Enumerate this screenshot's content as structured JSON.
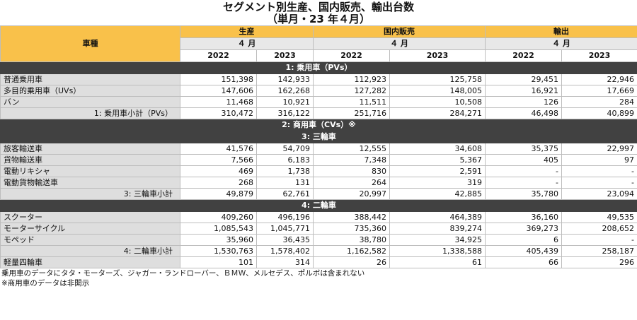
{
  "title_line1": "セグメント別生産、国内販売、輸出台数",
  "title_line2": "（単月・23 年４月）",
  "header": {
    "kind": "車種",
    "groups": [
      "生産",
      "国内販売",
      "輸出"
    ],
    "month": "４ 月",
    "years": [
      "2022",
      "2023",
      "2022",
      "2023",
      "2022",
      "2023"
    ]
  },
  "sections": {
    "pv": "1: 乗用車（PVs）",
    "cv": "2: 商用車（CVs）※",
    "three": "3: 三輪車",
    "two": "4: 二輪車"
  },
  "rows": {
    "pv1": {
      "label": "普通乗用車",
      "v": [
        "151,398",
        "142,933",
        "112,923",
        "125,758",
        "29,451",
        "22,946"
      ]
    },
    "pv2": {
      "label": "多目的乗用車（UVs）",
      "v": [
        "147,606",
        "162,268",
        "127,282",
        "148,005",
        "16,921",
        "17,669"
      ]
    },
    "pv3": {
      "label": "バン",
      "v": [
        "11,468",
        "10,921",
        "11,511",
        "10,508",
        "126",
        "284"
      ]
    },
    "pvs": {
      "label": "1: 乗用車小計（PVs）",
      "v": [
        "310,472",
        "316,122",
        "251,716",
        "284,271",
        "46,498",
        "40,899"
      ]
    },
    "t1": {
      "label": "旅客輸送車",
      "v": [
        "41,576",
        "54,709",
        "12,555",
        "34,608",
        "35,375",
        "22,997"
      ]
    },
    "t2": {
      "label": "貨物輸送車",
      "v": [
        "7,566",
        "6,183",
        "7,348",
        "5,367",
        "405",
        "97"
      ]
    },
    "t3": {
      "label": "電動リキシャ",
      "v": [
        "469",
        "1,738",
        "830",
        "2,591",
        "-",
        "-"
      ]
    },
    "t4": {
      "label": "電動貨物輸送車",
      "v": [
        "268",
        "131",
        "264",
        "319",
        "-",
        "-"
      ]
    },
    "ts": {
      "label": "3: 三輪車小計",
      "v": [
        "49,879",
        "62,761",
        "20,997",
        "42,885",
        "35,780",
        "23,094"
      ]
    },
    "w1": {
      "label": "スクーター",
      "v": [
        "409,260",
        "496,196",
        "388,442",
        "464,389",
        "36,160",
        "49,535"
      ]
    },
    "w2": {
      "label": "モーターサイクル",
      "v": [
        "1,085,543",
        "1,045,771",
        "735,360",
        "839,274",
        "369,273",
        "208,652"
      ]
    },
    "w3": {
      "label": "モペッド",
      "v": [
        "35,960",
        "36,435",
        "38,780",
        "34,925",
        "6",
        "-"
      ]
    },
    "ws": {
      "label": "4: 二輪車小計",
      "v": [
        "1,530,763",
        "1,578,402",
        "1,162,582",
        "1,338,588",
        "405,439",
        "258,187"
      ]
    },
    "q": {
      "label": "軽量四輪車",
      "v": [
        "101",
        "314",
        "26",
        "61",
        "66",
        "296"
      ]
    }
  },
  "notes": [
    "乗用車のデータにタタ・モーターズ、ジャガー・ランドローバー、ＢＭＷ、メルセデス、ポルボは含まれない",
    "※商用車のデータは非開示"
  ]
}
